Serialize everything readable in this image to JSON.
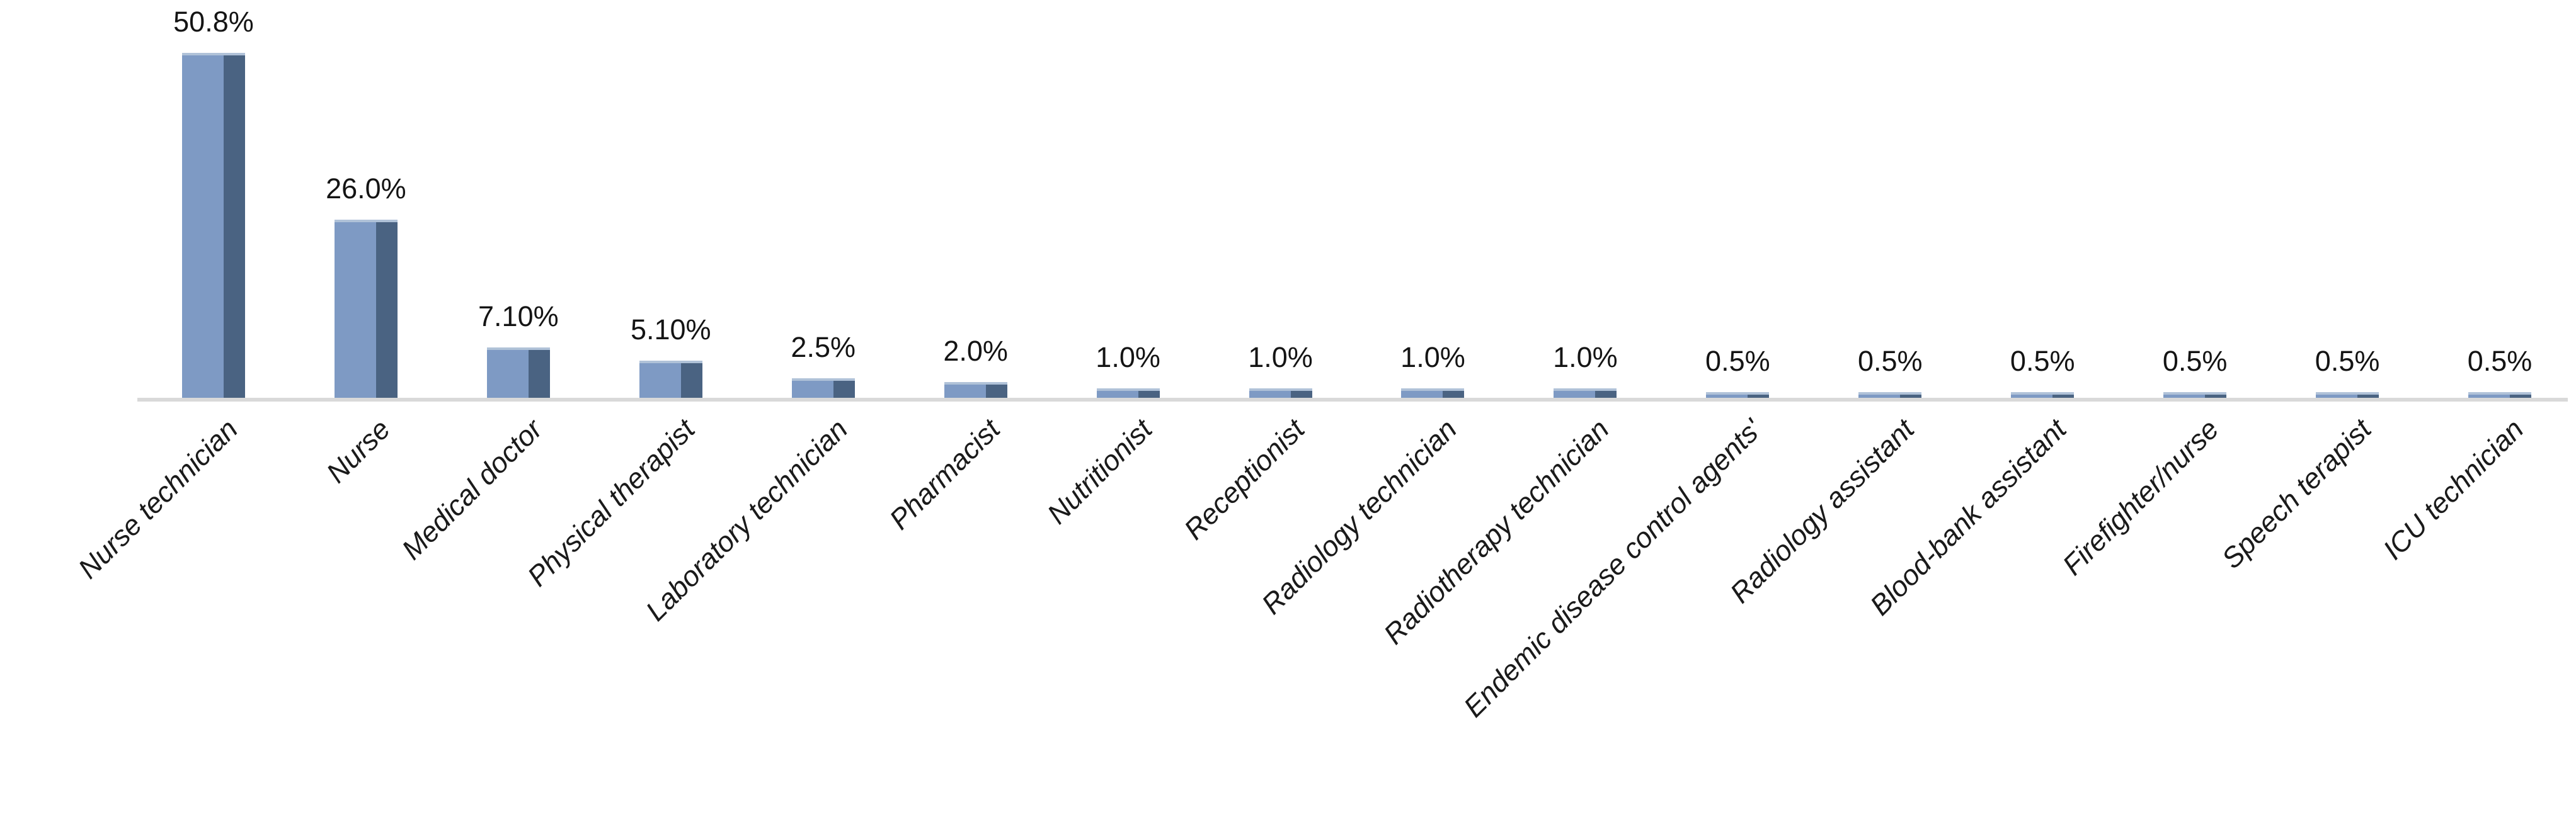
{
  "chart_data": {
    "type": "bar",
    "title": "",
    "xlabel": "",
    "ylabel": "",
    "categories": [
      "Nurse technician",
      "Nurse",
      "Medical doctor",
      "Physical therapist",
      "Laboratory technician",
      "Pharmacist",
      "Nutritionist",
      "Receptionist",
      "Radiology technician",
      "Radiotherapy technician",
      "Endemic disease control agents'",
      "Radiology assistant",
      "Blood-bank assistant",
      "Firefighter/nurse",
      "Speech terapist",
      "ICU technician"
    ],
    "values": [
      50.8,
      26.0,
      7.1,
      5.1,
      2.5,
      2.0,
      1.0,
      1.0,
      1.0,
      1.0,
      0.5,
      0.5,
      0.5,
      0.5,
      0.5,
      0.5
    ],
    "value_labels": [
      "50.8%",
      "26.0%",
      "7.10%",
      "5.10%",
      "2.5%",
      "2.0%",
      "1.0%",
      "1.0%",
      "1.0%",
      "1.0%",
      "0.5%",
      "0.5%",
      "0.5%",
      "0.5%",
      "0.5%",
      "0.5%"
    ],
    "ylim": [
      0,
      59
    ],
    "grid": false,
    "legend_position": "none",
    "bar_style": "3d-column",
    "category_label_rotation_deg": 45,
    "colors": {
      "bar_front": "#7e9ac4",
      "bar_side": "#4a6382",
      "bar_top": "#b0c2d8",
      "axis_line": "#d9d9d9",
      "label_text": "#141414"
    }
  }
}
